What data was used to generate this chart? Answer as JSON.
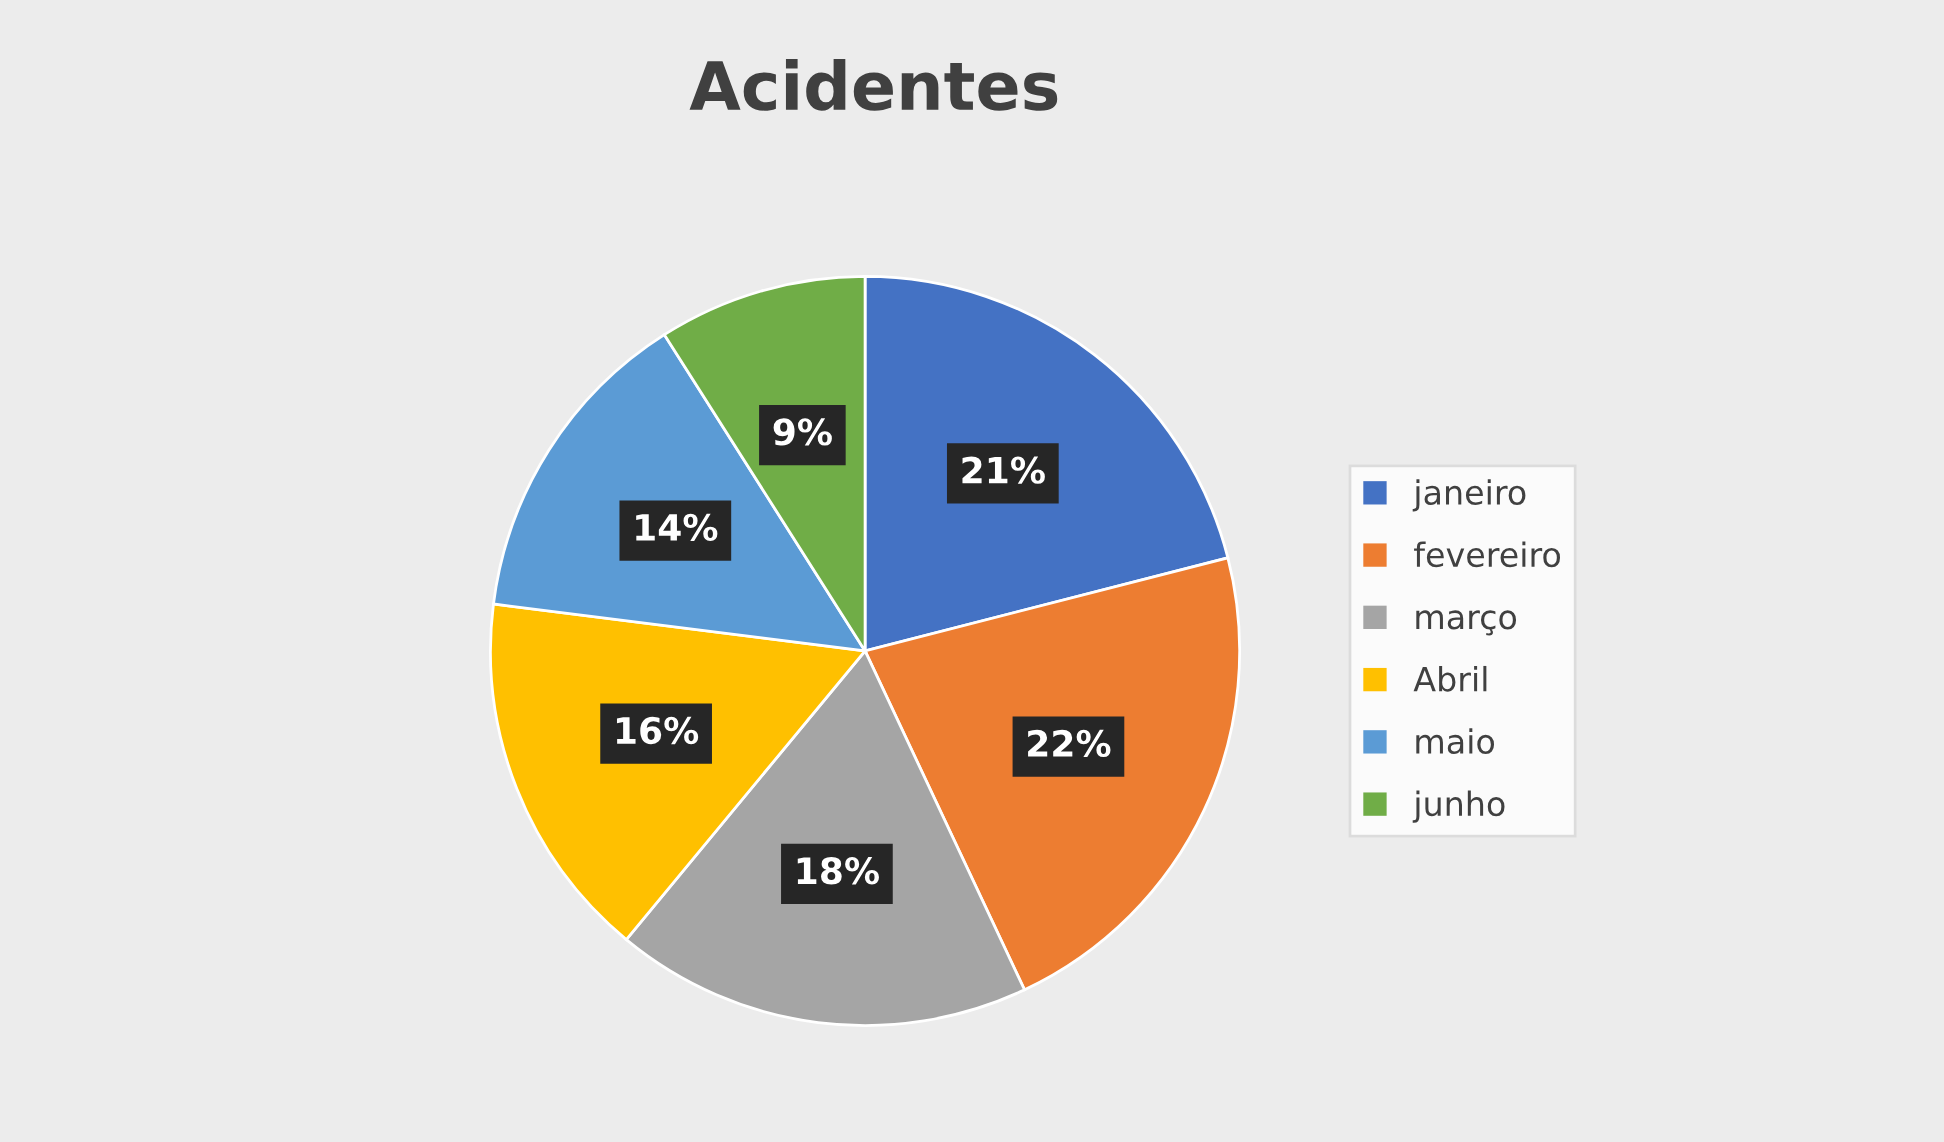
{
  "chart_data": {
    "type": "pie",
    "title": "Acidentes",
    "categories": [
      "janeiro",
      "fevereiro",
      "março",
      "Abril",
      "maio",
      "junho"
    ],
    "values": [
      21,
      22,
      18,
      16,
      14,
      9
    ],
    "colors": [
      "#4472c4",
      "#ed7d31",
      "#a5a5a5",
      "#ffc000",
      "#5b9bd5",
      "#70ad47"
    ],
    "value_labels": [
      "21%",
      "22%",
      "18%",
      "16%",
      "14%",
      "9%"
    ],
    "legend": "right"
  }
}
